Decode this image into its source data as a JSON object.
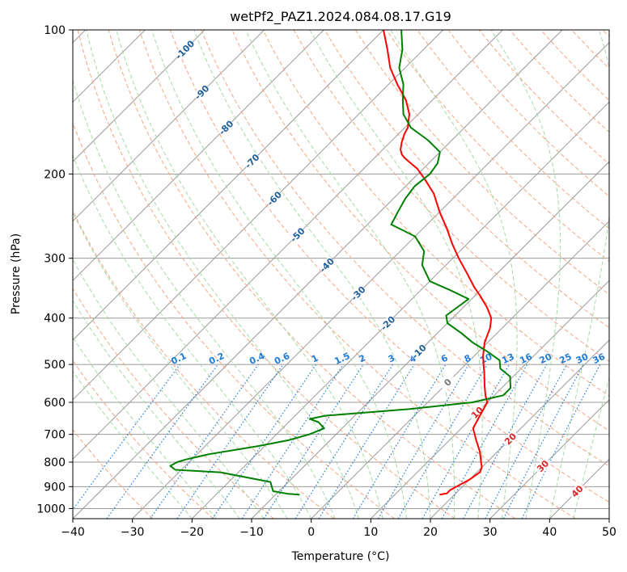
{
  "chart_data": {
    "type": "line",
    "subtype": "skew-T log-p diagram",
    "title": "wetPf2_PAZ1.2024.084.08.17.G19",
    "xlabel": "Temperature (°C)",
    "ylabel": "Pressure (hPa)",
    "xlim": [
      -40,
      50
    ],
    "ylim": [
      1050,
      100
    ],
    "y_scale": "log",
    "grid": true,
    "x_ticks": [
      -40,
      -30,
      -20,
      -10,
      0,
      10,
      20,
      30,
      40,
      50
    ],
    "y_ticks": [
      100,
      200,
      300,
      400,
      500,
      600,
      700,
      800,
      900,
      1000
    ],
    "colors": {
      "temperature": "#ff0000",
      "dewpoint": "#008000",
      "isotherms": "#999999",
      "dry_adiabats": "#f4a582",
      "moist_adiabats": "#a6d9a6",
      "mixing_ratio": "#1f7bd8",
      "isotherm_labels": "#1f5f99",
      "warm_isotherm_labels": "#d62728"
    },
    "series": [
      {
        "role": "temperature",
        "color": "#ff0000",
        "pressure": [
          935,
          930,
          915,
          900,
          870,
          840,
          820,
          800,
          760,
          720,
          680,
          640,
          600,
          580,
          550,
          520,
          500,
          480,
          450,
          420,
          400,
          380,
          360,
          345,
          320,
          300,
          280,
          260,
          240,
          220,
          205,
          195,
          190,
          185,
          182,
          178,
          172,
          165,
          160,
          155,
          150,
          140,
          130,
          120,
          110,
          100
        ],
        "temp": [
          17.5,
          18.5,
          18.5,
          19.0,
          20.0,
          20.5,
          20.0,
          19.0,
          17.0,
          14.5,
          12.0,
          11.0,
          10.0,
          8.5,
          6.5,
          4.5,
          3.0,
          1.5,
          -0.5,
          -2.0,
          -3.5,
          -6.0,
          -9.0,
          -11.5,
          -15.5,
          -19.0,
          -22.5,
          -26.0,
          -30.0,
          -34.0,
          -38.0,
          -41.0,
          -43.0,
          -45.0,
          -46.0,
          -47.0,
          -48.0,
          -49.0,
          -49.5,
          -50.5,
          -51.5,
          -54.5,
          -58.5,
          -62.5,
          -66.0,
          -70.0
        ]
      },
      {
        "role": "dewpoint",
        "color": "#008000",
        "pressure": [
          935,
          932,
          920,
          900,
          880,
          860,
          840,
          830,
          815,
          800,
          790,
          770,
          740,
          720,
          700,
          680,
          660,
          650,
          640,
          620,
          600,
          580,
          560,
          545,
          530,
          510,
          490,
          470,
          450,
          430,
          410,
          395,
          380,
          365,
          350,
          335,
          310,
          290,
          270,
          255,
          240,
          225,
          212,
          200,
          190,
          180,
          170,
          160,
          150,
          140,
          130,
          120,
          110,
          100
        ],
        "temp": [
          -6.0,
          -8.0,
          -11.0,
          -12.0,
          -13.0,
          -18.0,
          -23.0,
          -31.0,
          -32.5,
          -32.0,
          -31.0,
          -28.0,
          -21.0,
          -17.0,
          -14.5,
          -13.0,
          -15.0,
          -17.0,
          -15.0,
          -2.0,
          7.5,
          11.5,
          11.5,
          10.5,
          9.5,
          6.5,
          5.0,
          1.5,
          -2.5,
          -6.0,
          -10.0,
          -11.5,
          -11.0,
          -10.5,
          -15.0,
          -20.0,
          -24.0,
          -26.0,
          -30.0,
          -36.0,
          -37.0,
          -38.0,
          -38.5,
          -38.0,
          -38.5,
          -40.0,
          -44.0,
          -49.0,
          -52.5,
          -55.0,
          -57.5,
          -61.0,
          -63.5,
          -67.0
        ]
      }
    ],
    "isotherm_labels": [
      "-100",
      "-90",
      "-80",
      "-70",
      "-60",
      "-50",
      "-40",
      "-30",
      "-20",
      "-10",
      "0",
      "10",
      "20",
      "30",
      "40"
    ],
    "mixing_ratio_labels": [
      "0.1",
      "0.2",
      "0.4",
      "0.6",
      "1",
      "1.5",
      "2",
      "3",
      "4",
      "6",
      "8",
      "10",
      "13",
      "16",
      "20",
      "25",
      "30",
      "36"
    ]
  }
}
